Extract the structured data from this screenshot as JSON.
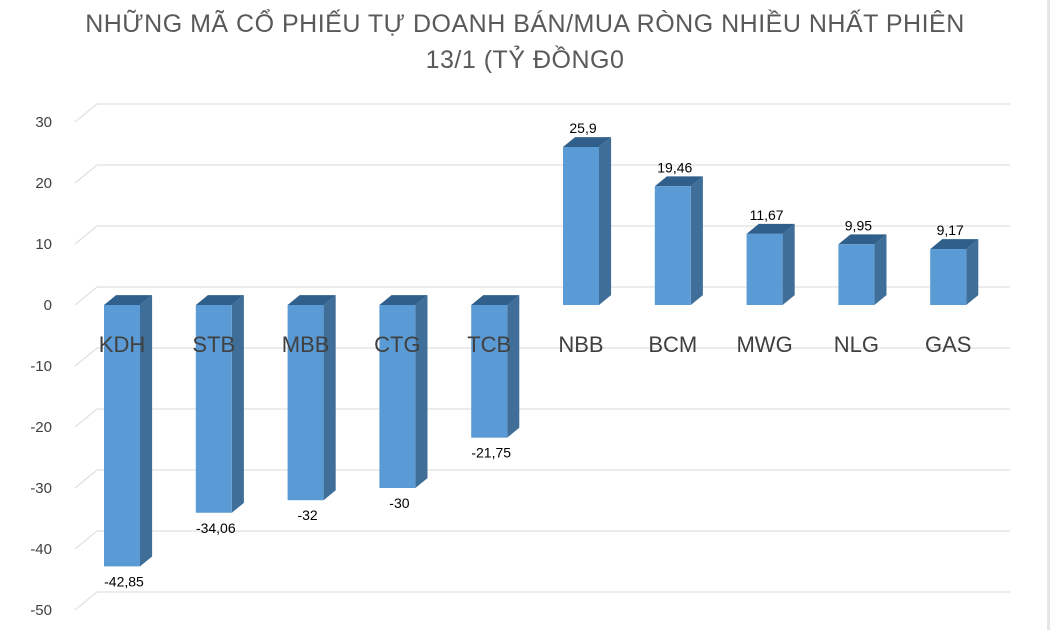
{
  "chart_data": {
    "type": "bar",
    "title_lines": [
      "NHỮNG MÃ CỔ PHIẾU TỰ DOANH BÁN/MUA RÒNG NHIỀU NHẤT PHIÊN",
      "13/1 (TỶ ĐỒNG0"
    ],
    "categories": [
      "KDH",
      "STB",
      "MBB",
      "CTG",
      "TCB",
      "NBB",
      "BCM",
      "MWG",
      "NLG",
      "GAS"
    ],
    "values": [
      -42.85,
      -34.06,
      -32,
      -30,
      -21.75,
      25.9,
      19.46,
      11.67,
      9.95,
      9.17
    ],
    "data_labels": [
      "-42,85",
      "-34,06",
      "-32",
      "-30",
      "-21,75",
      "25,9",
      "19,46",
      "11,67",
      "9,95",
      "9,17"
    ],
    "y_ticks": [
      30,
      20,
      10,
      0,
      -10,
      -20,
      -30,
      -40,
      -50
    ],
    "ylim": [
      -50,
      30
    ],
    "grid": true,
    "legend": "none",
    "style": "3d-column",
    "colors": {
      "bar_front": "#5b9bd5",
      "bar_side": "#3f6f99",
      "bar_top": "#2f5f8a",
      "grid": "#d9d9d9",
      "text": "#404040",
      "category_text": "#404040"
    }
  }
}
